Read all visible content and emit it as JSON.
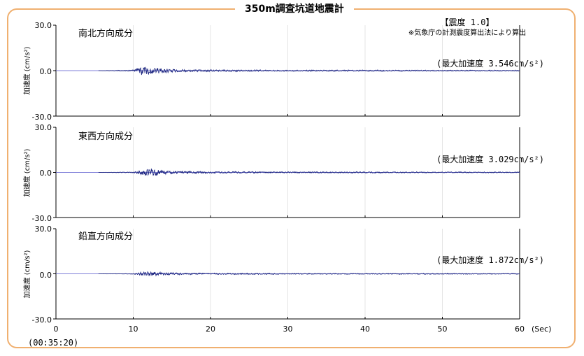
{
  "title": "350m調査坑道地震計",
  "intensity": {
    "label": "【震度 1.0】",
    "note": "※気象庁の計測震度算出法により算出"
  },
  "timestamp": "(00:35:20)",
  "colors": {
    "frame": "#f0b070",
    "trace": "#1a237e",
    "zero_line": "#5555cc",
    "axis": "#000000",
    "grid": "#cccccc"
  },
  "chart_data": [
    {
      "type": "line",
      "title": "南北方向成分",
      "ylabel": "加速度 (cm/s²)",
      "peak_label": "(最大加速度 3.546cm/s²)",
      "peak_value": 3.546,
      "ylim": [
        -30,
        30
      ],
      "yticks": [
        "30.0",
        "0.0",
        "-30.0"
      ],
      "xlim": [
        0,
        60
      ],
      "series": [
        {
          "x": [
            0,
            5,
            10,
            11,
            12,
            13,
            14,
            15,
            16,
            18,
            20,
            25,
            30,
            40,
            50,
            60
          ],
          "values": [
            0,
            0,
            0.5,
            3.5,
            2.8,
            2.2,
            1.6,
            1.2,
            1.0,
            0.8,
            0.7,
            0.6,
            0.5,
            0.5,
            0.4,
            0.4
          ]
        }
      ]
    },
    {
      "type": "line",
      "title": "東西方向成分",
      "ylabel": "加速度 (cm/s²)",
      "peak_label": "(最大加速度 3.029cm/s²)",
      "peak_value": 3.029,
      "ylim": [
        -30,
        30
      ],
      "yticks": [
        "30.0",
        "0.0",
        "-30.0"
      ],
      "xlim": [
        0,
        60
      ],
      "series": [
        {
          "x": [
            0,
            5,
            10,
            11,
            12,
            13,
            14,
            15,
            16,
            18,
            20,
            25,
            30,
            40,
            50,
            60
          ],
          "values": [
            0,
            0,
            0.4,
            1.8,
            3.0,
            2.2,
            1.4,
            1.0,
            0.9,
            0.8,
            0.7,
            0.6,
            0.5,
            0.5,
            0.4,
            0.4
          ]
        }
      ]
    },
    {
      "type": "line",
      "title": "鉛直方向成分",
      "ylabel": "加速度 (cm/s²)",
      "peak_label": "(最大加速度 1.872cm/s²)",
      "peak_value": 1.872,
      "ylim": [
        -30,
        30
      ],
      "yticks": [
        "30.0",
        "0.0",
        "-30.0"
      ],
      "xlim": [
        0,
        60
      ],
      "series": [
        {
          "x": [
            0,
            5,
            10,
            11,
            12,
            13,
            14,
            15,
            16,
            18,
            20,
            25,
            30,
            40,
            50,
            60
          ],
          "values": [
            0,
            0,
            0.3,
            1.2,
            1.8,
            1.4,
            1.0,
            0.8,
            0.7,
            0.6,
            0.5,
            0.5,
            0.4,
            0.4,
            0.4,
            0.3
          ]
        }
      ]
    }
  ],
  "xaxis": {
    "ticks": [
      "0",
      "10",
      "20",
      "30",
      "40",
      "50",
      "60"
    ],
    "tick_values": [
      0,
      10,
      20,
      30,
      40,
      50,
      60
    ],
    "unit_label": "(Sec)"
  }
}
